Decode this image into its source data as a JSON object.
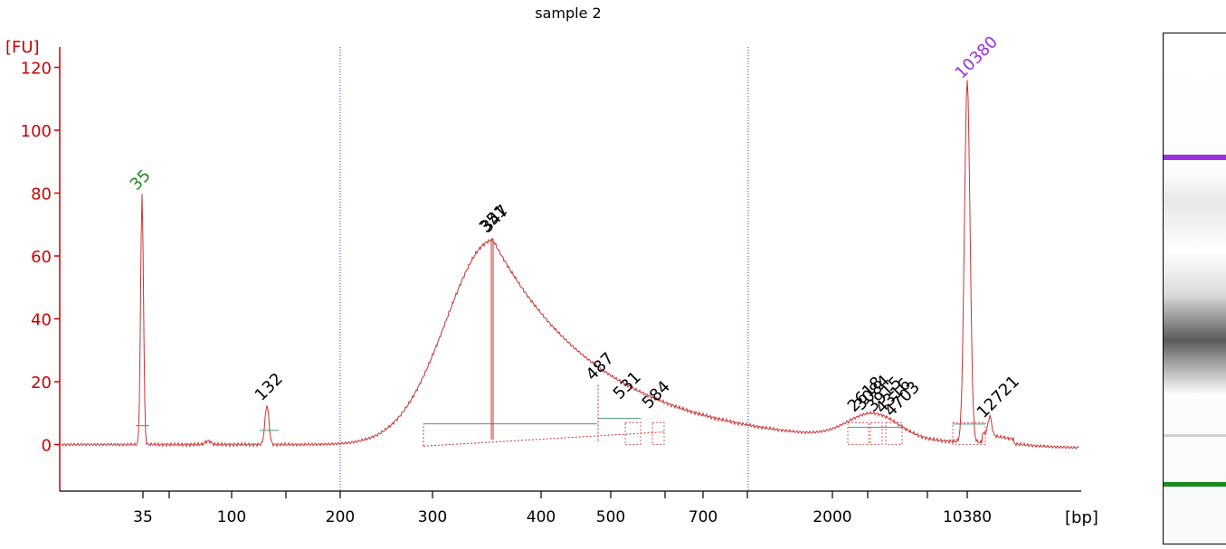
{
  "chart_data": {
    "type": "line",
    "title": "sample 2",
    "ylabel": "[FU]",
    "xlabel": "[bp]",
    "ylim": [
      -14,
      126
    ],
    "yticks": [
      0,
      20,
      40,
      60,
      80,
      100,
      120
    ],
    "xticks": [
      {
        "label": "35"
      },
      {
        "label": ""
      },
      {
        "label": "100"
      },
      {
        "label": ""
      },
      {
        "label": "200"
      },
      {
        "label": "300"
      },
      {
        "label": "400"
      },
      {
        "label": "500"
      },
      {
        "label": ""
      },
      {
        "label": "700"
      },
      {
        "label": ""
      },
      {
        "label": "2000"
      },
      {
        "label": ""
      },
      {
        "label": ""
      },
      {
        "label": "10380"
      }
    ],
    "peaks": [
      {
        "label": "35",
        "color": "#1a8a1a",
        "fu": 79.5
      },
      {
        "label": "132",
        "color": "#000000",
        "fu": 12.5
      },
      {
        "label": "351",
        "color": "#000000",
        "fu": 66
      },
      {
        "label": "347",
        "color": "#000000",
        "fu": 66
      },
      {
        "label": "487",
        "color": "#000000",
        "fu": 19
      },
      {
        "label": "531",
        "color": "#000000",
        "fu": 13
      },
      {
        "label": "584",
        "color": "#000000",
        "fu": 10
      },
      {
        "label": "2618",
        "color": "#000000",
        "fu": 9
      },
      {
        "label": "3084",
        "color": "#000000",
        "fu": 9.5
      },
      {
        "label": "3915",
        "color": "#000000",
        "fu": 9
      },
      {
        "label": "4316",
        "color": "#000000",
        "fu": 8.5
      },
      {
        "label": "4703",
        "color": "#000000",
        "fu": 7.5
      },
      {
        "label": "10380",
        "color": "#9b30e0",
        "fu": 115
      },
      {
        "label": "12721",
        "color": "#000000",
        "fu": 7
      }
    ],
    "colors": {
      "axis": "#cc0000",
      "trace": "#cc3333",
      "baseline": "#4a9a7a",
      "gridline": "#3344aa"
    },
    "gel": {
      "upper_marker_color": "#9b30e0",
      "lower_marker_color": "#1a8a1a"
    }
  }
}
